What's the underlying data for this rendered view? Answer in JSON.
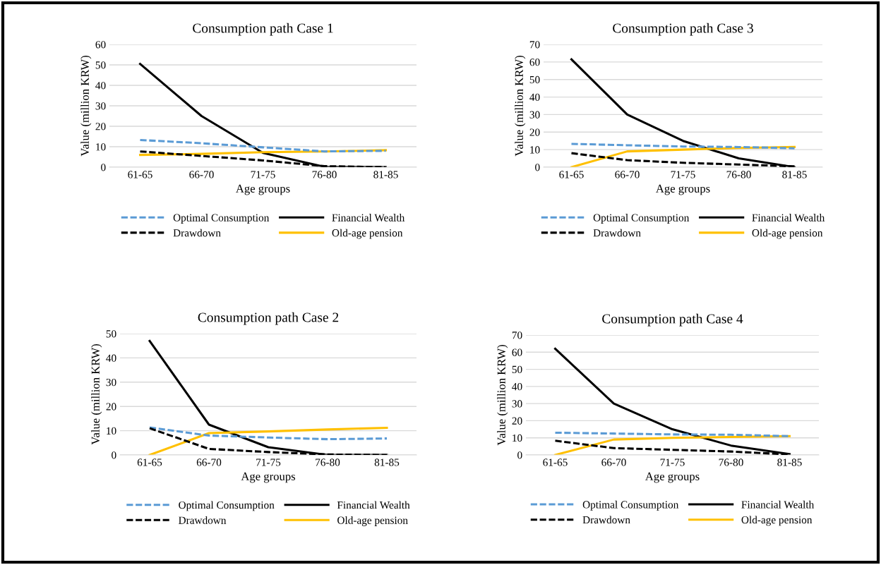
{
  "chart_data": [
    {
      "type": "line",
      "title": "Consumption path Case 1",
      "xlabel": "Age groups",
      "ylabel": "Value (million KRW)",
      "categories": [
        "61-65",
        "66-70",
        "71-75",
        "76-80",
        "81-85"
      ],
      "ylim": [
        0,
        60
      ],
      "yticks": [
        0,
        10,
        20,
        30,
        40,
        50,
        60
      ],
      "grid": "y",
      "legend": "bottom",
      "series": [
        {
          "name": "Optimal Consumption",
          "color": "#5b9bd5",
          "line_style": "dashed",
          "values": [
            13.3,
            11.7,
            9.7,
            7.7,
            8.0
          ]
        },
        {
          "name": "Financial Wealth",
          "color": "#000000",
          "line_style": "solid",
          "values": [
            50.5,
            25,
            7,
            0.2,
            0
          ]
        },
        {
          "name": "Drawdown",
          "color": "#000000",
          "line_style": "dashed",
          "values": [
            7.7,
            5.5,
            3.3,
            0.5,
            0
          ]
        },
        {
          "name": "Old-age pension",
          "color": "#ffc000",
          "line_style": "solid",
          "values": [
            6,
            6.5,
            7.3,
            7.7,
            8.3
          ]
        }
      ]
    },
    {
      "type": "line",
      "title": "Consumption path Case 3",
      "xlabel": "Age groups",
      "ylabel": "Value (million KRW)",
      "categories": [
        "61-65",
        "66-70",
        "71-75",
        "76-80",
        "81-85"
      ],
      "ylim": [
        0,
        70
      ],
      "yticks": [
        0,
        10,
        20,
        30,
        40,
        50,
        60,
        70
      ],
      "grid": "y",
      "legend": "bottom",
      "series": [
        {
          "name": "Optimal Consumption",
          "color": "#5b9bd5",
          "line_style": "dashed",
          "values": [
            13.3,
            12.5,
            11.8,
            11.5,
            10.8
          ]
        },
        {
          "name": "Financial Wealth",
          "color": "#000000",
          "line_style": "solid",
          "values": [
            61.5,
            30,
            15,
            5,
            0
          ]
        },
        {
          "name": "Drawdown",
          "color": "#000000",
          "line_style": "dashed",
          "values": [
            8,
            4,
            2.5,
            1.5,
            0.5
          ]
        },
        {
          "name": "Old-age pension",
          "color": "#ffc000",
          "line_style": "solid",
          "values": [
            0,
            9,
            10,
            11,
            11.5
          ]
        }
      ]
    },
    {
      "type": "line",
      "title": "Consumption path Case 2",
      "xlabel": "Age groups",
      "ylabel": "Value (million KRW)",
      "categories": [
        "61-65",
        "66-70",
        "71-75",
        "76-80",
        "81-85"
      ],
      "ylim": [
        0,
        50
      ],
      "yticks": [
        0,
        10,
        20,
        30,
        40,
        50
      ],
      "grid": "y",
      "legend": "bottom",
      "series": [
        {
          "name": "Optimal Consumption",
          "color": "#5b9bd5",
          "line_style": "dashed",
          "values": [
            11.3,
            8,
            7.2,
            6.5,
            6.8
          ]
        },
        {
          "name": "Financial Wealth",
          "color": "#000000",
          "line_style": "solid",
          "values": [
            47,
            12.5,
            3.2,
            0,
            0
          ]
        },
        {
          "name": "Drawdown",
          "color": "#000000",
          "line_style": "dashed",
          "values": [
            11,
            2.5,
            1.2,
            0.2,
            0
          ]
        },
        {
          "name": "Old-age pension",
          "color": "#ffc000",
          "line_style": "solid",
          "values": [
            0,
            9,
            9.7,
            10.5,
            11.2
          ]
        }
      ]
    },
    {
      "type": "line",
      "title": "Consumption path Case 4",
      "xlabel": "Age groups",
      "ylabel": "Value (million KRW)",
      "categories": [
        "61-65",
        "66-70",
        "71-75",
        "76-80",
        "81-85"
      ],
      "ylim": [
        0,
        70
      ],
      "yticks": [
        0,
        10,
        20,
        30,
        40,
        50,
        60,
        70
      ],
      "grid": "y",
      "legend": "bottom",
      "series": [
        {
          "name": "Optimal Consumption",
          "color": "#5b9bd5",
          "line_style": "dashed",
          "values": [
            13,
            12.5,
            12,
            11.8,
            11
          ]
        },
        {
          "name": "Financial Wealth",
          "color": "#000000",
          "line_style": "solid",
          "values": [
            62,
            30,
            15,
            5.5,
            0.5
          ]
        },
        {
          "name": "Drawdown",
          "color": "#000000",
          "line_style": "dashed",
          "values": [
            8.3,
            4,
            3,
            2,
            0.3
          ]
        },
        {
          "name": "Old-age pension",
          "color": "#ffc000",
          "line_style": "solid",
          "values": [
            0,
            9,
            10,
            10.5,
            11
          ]
        }
      ]
    }
  ]
}
